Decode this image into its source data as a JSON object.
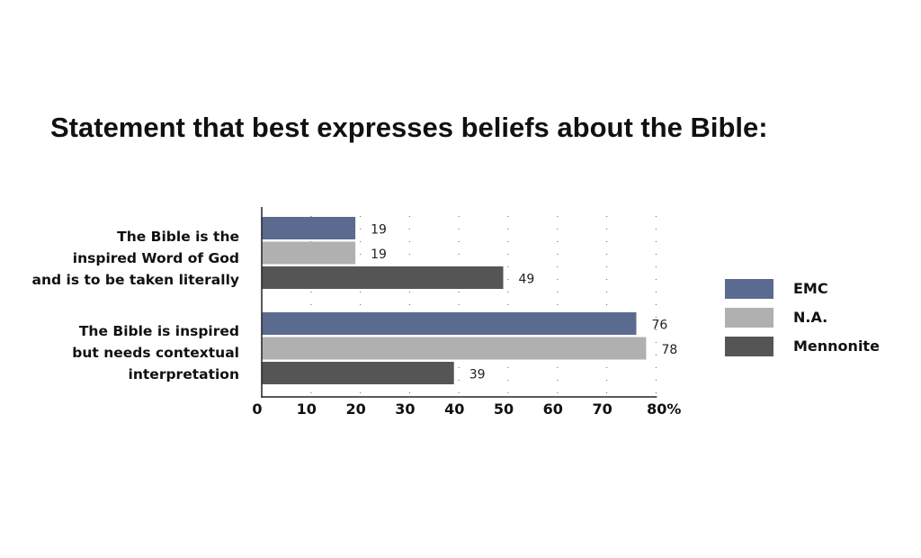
{
  "chart_data": {
    "type": "bar",
    "orientation": "horizontal",
    "title": "Statement that best expresses beliefs about the Bible:",
    "categories": [
      [
        "The Bible is the",
        "inspired Word of God",
        "and is to be taken literally"
      ],
      [
        "The Bible is inspired",
        "but needs contextual",
        "interpretation"
      ]
    ],
    "series": [
      {
        "name": "EMC",
        "color": "#5b6a8f",
        "values": [
          19,
          76
        ]
      },
      {
        "name": "N.A.",
        "color": "#b0b0b0",
        "values": [
          19,
          78
        ]
      },
      {
        "name": "Mennonite",
        "color": "#555555",
        "values": [
          49,
          39
        ]
      }
    ],
    "x_ticks": [
      "0",
      "10",
      "20",
      "30",
      "40",
      "50",
      "60",
      "70",
      "80%"
    ],
    "xlim": [
      0,
      80
    ],
    "grid": "dotted vertical",
    "legend_position": "right"
  }
}
